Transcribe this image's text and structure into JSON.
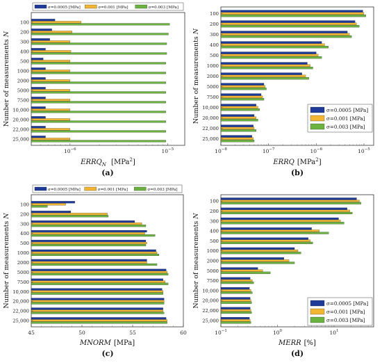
{
  "figure": {
    "ylabel_pre": "Number of measurements ",
    "ylabel_var": "N",
    "sigma_symbol": "σ",
    "colors": {
      "s1": "#1f3b9a",
      "s2": "#f2b632",
      "s3": "#6ab33f"
    }
  },
  "chart_data": [
    {
      "panel": "(a)",
      "type": "bar",
      "orientation": "horizontal",
      "categories": [
        "100",
        "200",
        "300",
        "400",
        "500",
        "1000",
        "2000",
        "5000",
        "7500",
        "10,000",
        "20,000",
        "22,000",
        "25,000"
      ],
      "x_scale": "log",
      "xlim": [
        4e-07,
        1.5e-05
      ],
      "x_ticks": [
        {
          "v": 1e-06,
          "label": "10",
          "exp": "−6"
        },
        {
          "v": 1e-05,
          "label": "10",
          "exp": "−5"
        }
      ],
      "xlabel_main": "ERRQ",
      "xlabel_sub": "N",
      "xlabel_unit_pre": "[MPa",
      "xlabel_unit_sup": "2",
      "xlabel_unit_post": "]",
      "legend_position": "top",
      "series": [
        {
          "name": "σ=0.0005 [MPa]",
          "values": [
            7e-07,
            6.5e-07,
            6.2e-07,
            5.6e-07,
            5.3e-07,
            5.6e-07,
            5.6e-07,
            5.6e-07,
            5.6e-07,
            5.6e-07,
            5.6e-07,
            5.6e-07,
            5.6e-07
          ]
        },
        {
          "name": "σ=0.001 [MPa]",
          "values": [
            1.3e-06,
            1.05e-06,
            1e-06,
            1.02e-06,
            1e-06,
            1e-06,
            1e-06,
            1e-06,
            1e-06,
            1e-06,
            1e-06,
            1e-06,
            1e-06
          ]
        },
        {
          "name": "σ=0.003 [MPa]",
          "values": [
            1.05e-05,
            1.02e-05,
            9.8e-06,
            9.8e-06,
            9.6e-06,
            9.6e-06,
            9.6e-06,
            9.6e-06,
            9.6e-06,
            9.6e-06,
            9.6e-06,
            9.6e-06,
            9.6e-06
          ]
        }
      ]
    },
    {
      "panel": "(b)",
      "type": "bar",
      "orientation": "horizontal",
      "categories": [
        "100",
        "200",
        "300",
        "400",
        "500",
        "1000",
        "2000",
        "5000",
        "7500",
        "10,000",
        "20,000",
        "22,000",
        "25,000"
      ],
      "x_scale": "log",
      "xlim": [
        1e-08,
        1.6e-05
      ],
      "x_ticks": [
        {
          "v": 1e-08,
          "label": "10",
          "exp": "−8"
        },
        {
          "v": 1e-07,
          "label": "10",
          "exp": "−7"
        },
        {
          "v": 1e-06,
          "label": "10",
          "exp": "−6"
        },
        {
          "v": 1e-05,
          "label": "10",
          "exp": "−5"
        }
      ],
      "xlabel_main": "ERRQ",
      "xlabel_sub": "",
      "xlabel_unit_pre": "[MPa",
      "xlabel_unit_sup": "2",
      "xlabel_unit_post": "]",
      "legend_position": "bottom-right",
      "series": [
        {
          "name": "σ=0.0005 [MPa]",
          "values": [
            9.5e-06,
            6.5e-06,
            4.5e-06,
            1.3e-06,
            1e-06,
            6.5e-07,
            5e-07,
            8e-08,
            7e-08,
            5.5e-08,
            5e-08,
            4.8e-08,
            4.5e-08
          ]
        },
        {
          "name": "σ=0.001 [MPa]",
          "values": [
            1e-05,
            7e-06,
            5e-06,
            1.5e-06,
            1.1e-06,
            7.5e-07,
            6e-07,
            8.5e-08,
            7.5e-08,
            6e-08,
            5.5e-08,
            5e-08,
            4.8e-08
          ]
        },
        {
          "name": "σ=0.003 [MPa]",
          "values": [
            1.1e-05,
            8e-06,
            5.5e-06,
            1.8e-06,
            1.3e-06,
            8.5e-07,
            7e-07,
            9e-08,
            8e-08,
            6.5e-08,
            6e-08,
            5.5e-08,
            5e-08
          ]
        }
      ]
    },
    {
      "panel": "(c)",
      "type": "bar",
      "orientation": "horizontal",
      "categories": [
        "100",
        "200",
        "300",
        "400",
        "500",
        "1000",
        "2000",
        "5000",
        "7500",
        "10,000",
        "20,000",
        "22,000",
        "25,000"
      ],
      "x_scale": "linear",
      "xlim": [
        45,
        60
      ],
      "x_ticks": [
        {
          "v": 45,
          "label": "45"
        },
        {
          "v": 50,
          "label": "50"
        },
        {
          "v": 55,
          "label": "55"
        },
        {
          "v": 60,
          "label": "60"
        }
      ],
      "xlabel_main": "MNORM",
      "xlabel_sub": "",
      "xlabel_unit_pre": "[MPa]",
      "xlabel_unit_sup": "",
      "xlabel_unit_post": "",
      "legend_position": "top",
      "series": [
        {
          "name": "σ=0.0005 [MPa]",
          "values": [
            49.3,
            48.9,
            55.2,
            56.4,
            56.3,
            57.3,
            56.4,
            58.3,
            58.0,
            57.9,
            58.1,
            58.0,
            58.3
          ]
        },
        {
          "name": "σ=0.001 [MPa]",
          "values": [
            48.4,
            52.5,
            55.9,
            56.2,
            56.4,
            57.4,
            56.4,
            58.4,
            58.2,
            58.0,
            58.1,
            58.0,
            58.4
          ]
        },
        {
          "name": "σ=0.003 [MPa]",
          "values": [
            46.6,
            52.6,
            56.3,
            57.2,
            56.3,
            57.6,
            57.4,
            58.5,
            58.5,
            58.0,
            58.1,
            58.1,
            58.4
          ]
        }
      ]
    },
    {
      "panel": "(d)",
      "type": "bar",
      "orientation": "horizontal",
      "categories": [
        "100",
        "200",
        "300",
        "400",
        "500",
        "1000",
        "2000",
        "5000",
        "7500",
        "10,000",
        "20,000",
        "22,000",
        "25,000"
      ],
      "x_scale": "log",
      "xlim": [
        0.1,
        50
      ],
      "x_ticks": [
        {
          "v": 0.1,
          "label": "10",
          "exp": "−1"
        },
        {
          "v": 1,
          "label": "10",
          "exp": "0"
        },
        {
          "v": 10,
          "label": "10",
          "exp": "1"
        }
      ],
      "xlabel_main": "MERR",
      "xlabel_sub": "",
      "xlabel_unit_pre": "[%]",
      "xlabel_unit_sup": "",
      "xlabel_unit_post": "",
      "legend_position": "bottom-right",
      "series": [
        {
          "name": "σ=0.0005 [MPa]",
          "values": [
            25,
            17,
            12,
            4.0,
            3.5,
            2.0,
            1.3,
            0.45,
            0.33,
            0.32,
            0.33,
            0.33,
            0.32
          ]
        },
        {
          "name": "σ=0.001 [MPa]",
          "values": [
            28,
            19,
            13,
            5.5,
            3.8,
            2.3,
            1.6,
            0.55,
            0.36,
            0.34,
            0.34,
            0.34,
            0.33
          ]
        },
        {
          "name": "σ=0.003 [MPa]",
          "values": [
            30,
            21,
            15,
            8.0,
            4.2,
            2.6,
            2.0,
            0.75,
            0.38,
            0.36,
            0.35,
            0.35,
            0.34
          ]
        }
      ]
    }
  ]
}
